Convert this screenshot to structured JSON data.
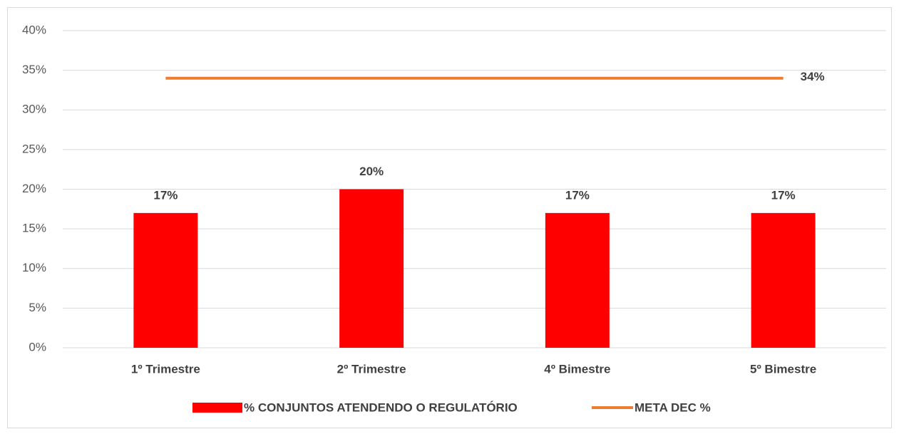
{
  "chart_data": {
    "type": "bar",
    "categories": [
      "1º Trimestre",
      "2º Trimestre",
      "4º Bimestre",
      "5º Bimestre"
    ],
    "series": [
      {
        "name": "% CONJUNTOS ATENDENDO O REGULATÓRIO",
        "type": "bar",
        "color": "#ff0000",
        "values": [
          17,
          20,
          17,
          17
        ],
        "value_labels": [
          "17%",
          "20%",
          "17%",
          "17%"
        ]
      },
      {
        "name": "META DEC %",
        "type": "line",
        "color": "#ed7d31",
        "values": [
          34,
          34,
          34,
          34
        ],
        "value_labels": [
          null,
          null,
          null,
          "34%"
        ]
      }
    ],
    "ylim": [
      0,
      40
    ],
    "yticks": [
      {
        "value": 0,
        "label": "0%"
      },
      {
        "value": 5,
        "label": "5%"
      },
      {
        "value": 10,
        "label": "10%"
      },
      {
        "value": 15,
        "label": "15%"
      },
      {
        "value": 20,
        "label": "20%"
      },
      {
        "value": 25,
        "label": "25%"
      },
      {
        "value": 30,
        "label": "30%"
      },
      {
        "value": 35,
        "label": "35%"
      },
      {
        "value": 40,
        "label": "40%"
      }
    ],
    "grid": true,
    "legend": "bottom"
  }
}
